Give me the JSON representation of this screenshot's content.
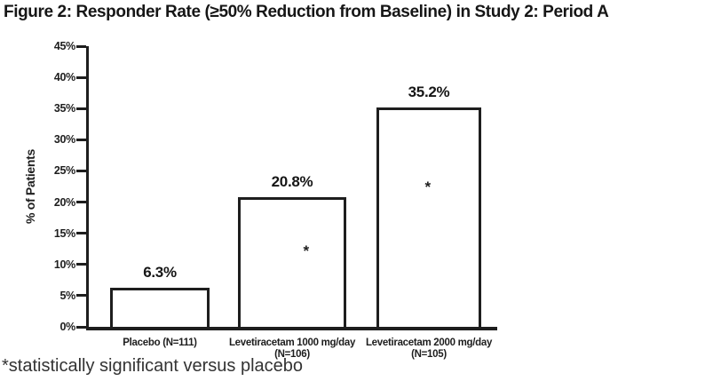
{
  "page": {
    "title": "Figure 2: Responder Rate (≥50% Reduction from Baseline) in Study 2: Period A",
    "footnote": "*statistically significant versus placebo"
  },
  "chart_data": {
    "type": "bar",
    "title": "Figure 2: Responder Rate (≥50% Reduction from Baseline) in Study 2: Period A",
    "ylabel": "% of Patients",
    "ylim": [
      0,
      45
    ],
    "ytick_step": 5,
    "yticks": [
      "0%",
      "5%",
      "10%",
      "15%",
      "20%",
      "25%",
      "30%",
      "35%",
      "40%",
      "45%"
    ],
    "categories": [
      "Placebo (N=111)",
      "Levetiracetam 1000 mg/day (N=106)",
      "Levetiracetam 2000 mg/day (N=105)"
    ],
    "xtick_lines": [
      [
        "Placebo (N=111)"
      ],
      [
        "Levetiracetam 1000 mg/day",
        "(N=106)"
      ],
      [
        "Levetiracetam 2000 mg/day",
        "(N=105)"
      ]
    ],
    "values": [
      6.3,
      20.8,
      35.2
    ],
    "value_labels": [
      "6.3%",
      "20.8%",
      "35.2%"
    ],
    "significant": [
      false,
      true,
      true
    ],
    "significance_marker": "*",
    "footnote": "*statistically significant versus placebo",
    "grid": false,
    "legend": "none",
    "bar_fill": "#ffffff",
    "bar_border": "#1e1e1e"
  }
}
